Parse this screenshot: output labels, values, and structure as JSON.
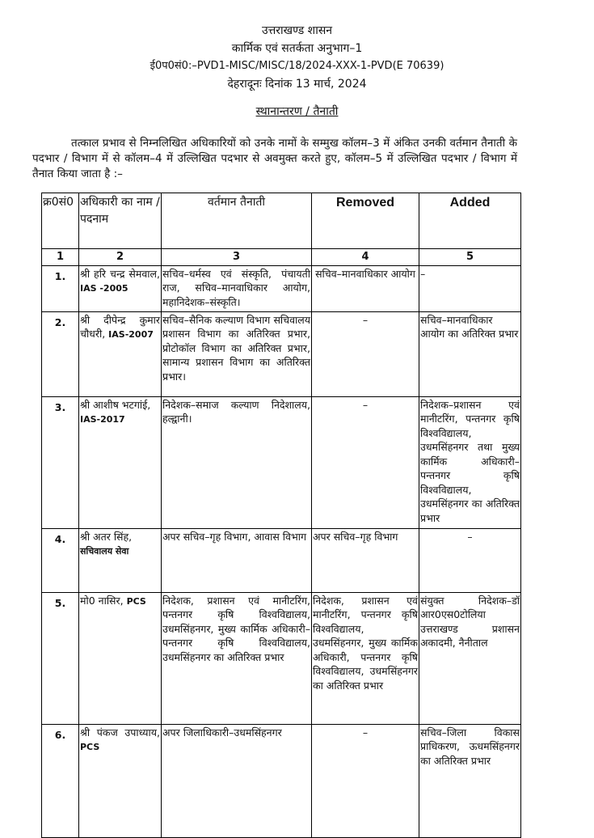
{
  "header": {
    "govt": "उत्तराखण्ड शासन",
    "section": "कार्मिक एवं सतर्कता अनुभाग–1",
    "ref_no": "ई0प0सं0:–PVD1-MISC/MISC/18/2024-XXX-1-PVD(E 70639)",
    "place_date": "देहरादूनः दिनांक   13 मार्च, 2024",
    "subject": "स्थानान्तरण / तैनाती"
  },
  "intro": "तत्काल प्रभाव से निम्नलिखित अधिकारियों को उनके नामों के सम्मुख कॉलम–3 में अंकित उनकी वर्तमान तैनाती के पदभार / विभाग में से कॉलम–4 में उल्लिखित पदभार से अवमुक्त करते हुए, कॉलम–5 में उल्लिखित पदभार / विभाग में तैनात किया जाता है :–",
  "table": {
    "headers": [
      "क्र0सं0",
      "अधिकारी का नाम / पदनाम",
      "वर्तमान तैनाती",
      "Removed",
      "Added"
    ],
    "col_numbers": [
      "1",
      "2",
      "3",
      "4",
      "5"
    ],
    "rows": [
      {
        "sn": "1.",
        "name": "श्री हरि चन्द्र सेमवाल,",
        "service": "IAS -2005",
        "current": "सचिव–धर्मस्व एवं संस्कृति, पंचायती राज, सचिव–मानवाधिकार आयोग, महानिदेशक–संस्कृति।",
        "removed": "सचिव–मानवाधिकार आयोग",
        "added": "–"
      },
      {
        "sn": "2.",
        "name": "श्री दीपेन्द्र कुमार चौधरी,",
        "service": "IAS-2007",
        "current": "सचिव–सैनिक कल्याण विभाग सचिवालय प्रशासन विभाग का अतिरिक्त प्रभार, प्रोटोकॉल विभाग का अतिरिक्त प्रभार, सामान्य प्रशासन विभाग का अतिरिक्त प्रभार।",
        "removed": "–",
        "added": "सचिव–मानवाधिकार आयोग का अतिरिक्त प्रभार"
      },
      {
        "sn": "3.",
        "name": "श्री आशीष भटगांई,",
        "service": "IAS-2017",
        "current": "निदेशक–समाज कल्याण निदेशालय, हल्द्वानी।",
        "removed": "–",
        "added": "निदेशक–प्रशासन एवं मानीटरिंग, पन्तनगर कृषि विश्वविद्यालय, उधमसिंहनगर तथा मुख्य कार्मिक अधिकारी– पन्तनगर कृषि विश्वविद्यालय, उधमसिंहनगर का अतिरिक्त प्रभार"
      },
      {
        "sn": "4.",
        "name": "श्री अतर सिंह,",
        "service": "सचिवालय सेवा",
        "current": "अपर सचिव–गृह विभाग, आवास विभाग",
        "removed": "अपर सचिव–गृह विभाग",
        "added": "–"
      },
      {
        "sn": "5.",
        "name": "मो0 नासिर,",
        "service": "PCS",
        "current": "निदेशक, प्रशासन एवं मानीटरिंग, पन्तनगर कृषि विश्वविद्यालय, उधमसिंहनगर, मुख्य कार्मिक अधिकारी–पन्तनगर कृषि विश्वविद्यालय, उधमसिंहनगर का अतिरिक्त प्रभार",
        "removed": "निदेशक, प्रशासन एवं मानीटरिंग, पन्तनगर कृषि विश्वविद्यालय, उधमसिंहनगर, मुख्य कार्मिक अधिकारी, पन्तनगर कृषि विश्वविद्यालय, उधमसिंहनगर का अतिरिक्त प्रभार",
        "added": "संयुक्त निदेशक–डॉ आर0एस0टोलिया उत्तराखण्ड प्रशासन अकादमी, नैनीताल"
      },
      {
        "sn": "6.",
        "name": "श्री पंकज उपाध्याय,",
        "service": "PCS",
        "current": "अपर जिलाधिकारी–उधमसिंहनगर",
        "removed": "–",
        "added": "सचिव–जिला विकास प्राधिकरण, ऊधमसिंहनगर का अतिरिक्त प्रभार"
      }
    ]
  }
}
